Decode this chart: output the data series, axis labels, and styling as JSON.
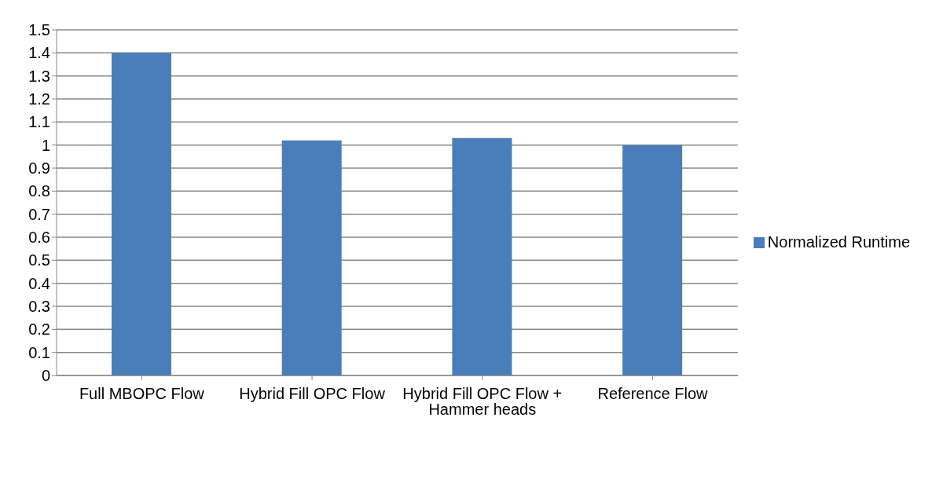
{
  "chart_data": {
    "type": "bar",
    "categories": [
      "Full MBOPC Flow",
      "Hybrid Fill OPC Flow",
      "Hybrid Fill OPC Flow + Hammer heads",
      "Reference Flow"
    ],
    "series": [
      {
        "name": "Normalized Runtime",
        "color": "#4a7ebb",
        "values": [
          1.4,
          1.02,
          1.03,
          1.0
        ]
      }
    ],
    "ylim": [
      0,
      1.5
    ],
    "yticks": [
      0,
      0.1,
      0.2,
      0.3,
      0.4,
      0.5,
      0.6,
      0.7,
      0.8,
      0.9,
      1,
      1.1,
      1.2,
      1.3,
      1.4,
      1.5
    ],
    "grid": "y",
    "legend": "right"
  }
}
